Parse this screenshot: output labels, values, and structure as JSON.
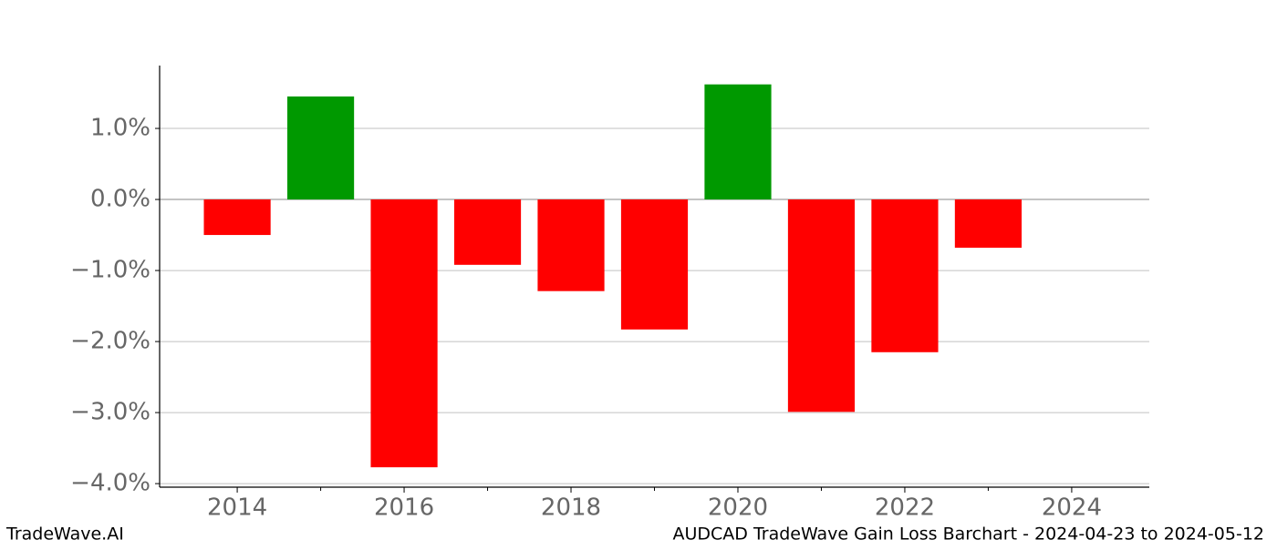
{
  "chart_data": {
    "type": "bar",
    "x": [
      2014,
      2015,
      2016,
      2017,
      2018,
      2019,
      2020,
      2021,
      2022,
      2023
    ],
    "values": [
      -0.5,
      1.45,
      -3.77,
      -0.92,
      -1.29,
      -1.83,
      1.62,
      -2.99,
      -2.15,
      -0.68
    ],
    "positive_color": "#009900",
    "negative_color": "#ff0000",
    "xlim": [
      2013.07,
      2024.93
    ],
    "xticks": [
      2014,
      2016,
      2018,
      2020,
      2022,
      2024
    ],
    "xminorticks": [
      2015,
      2017,
      2019,
      2021,
      2023
    ],
    "ylim": [
      -4.05,
      1.885
    ],
    "yticks": [
      {
        "value": -4,
        "label": "−4.0%"
      },
      {
        "value": -3,
        "label": "−3.0%"
      },
      {
        "value": -2,
        "label": "−2.0%"
      },
      {
        "value": -1,
        "label": "−1.0%"
      },
      {
        "value": 0,
        "label": "0.0%"
      },
      {
        "value": 1,
        "label": "1.0%"
      }
    ],
    "grid": true
  },
  "footer": {
    "left": "TradeWave.AI",
    "right": "AUDCAD TradeWave Gain Loss Barchart - 2024-04-23 to 2024-05-12"
  }
}
